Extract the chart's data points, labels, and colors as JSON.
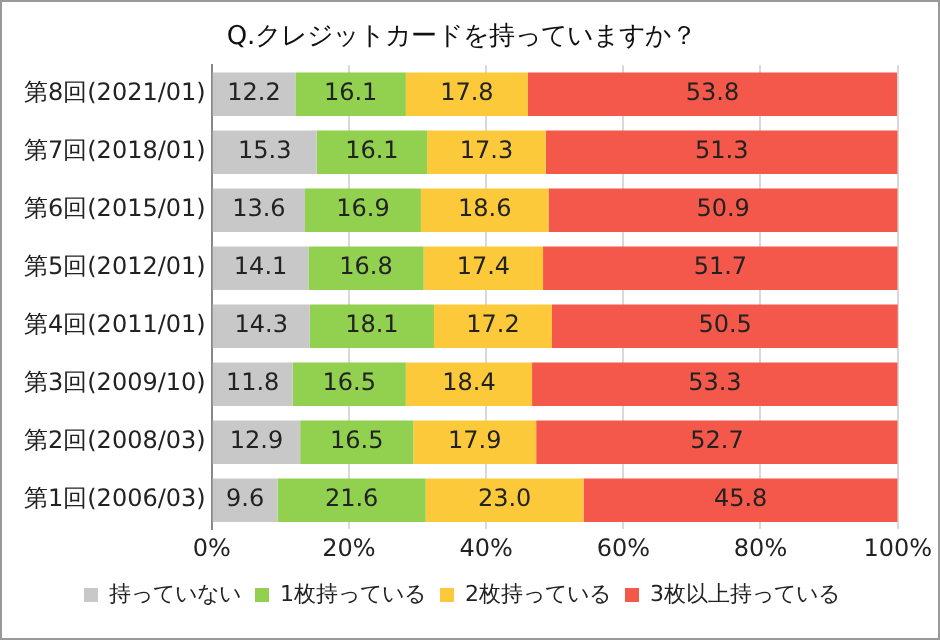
{
  "chart_data": {
    "type": "bar",
    "orientation": "horizontal",
    "stacked": true,
    "title": "Q.クレジットカードを持っていますか？",
    "categories": [
      "第8回(2021/01)",
      "第7回(2018/01)",
      "第6回(2015/01)",
      "第5回(2012/01)",
      "第4回(2011/01)",
      "第3回(2009/10)",
      "第2回(2008/03)",
      "第1回(2006/03)"
    ],
    "series": [
      {
        "name": "持っていない",
        "color": "#c8c8c8",
        "values": [
          12.2,
          15.3,
          13.6,
          14.1,
          14.3,
          11.8,
          12.9,
          9.6
        ],
        "value_labels": [
          "12.2",
          "15.3",
          "13.6",
          "14.1",
          "14.3",
          "11.8",
          "12.9",
          "9.6"
        ]
      },
      {
        "name": "1枚持っている",
        "color": "#92d050",
        "values": [
          16.1,
          16.1,
          16.9,
          16.8,
          18.1,
          16.5,
          16.5,
          21.6
        ],
        "value_labels": [
          "16.1",
          "16.1",
          "16.9",
          "16.8",
          "18.1",
          "16.5",
          "16.5",
          "21.6"
        ]
      },
      {
        "name": "2枚持っている",
        "color": "#fbc93a",
        "values": [
          17.8,
          17.3,
          18.6,
          17.4,
          17.2,
          18.4,
          17.9,
          23.0
        ],
        "value_labels": [
          "17.8",
          "17.3",
          "18.6",
          "17.4",
          "17.2",
          "18.4",
          "17.9",
          "23.0"
        ]
      },
      {
        "name": "3枚以上持っている",
        "color": "#f4584a",
        "values": [
          53.8,
          51.3,
          50.9,
          51.7,
          50.5,
          53.3,
          52.7,
          45.8
        ],
        "value_labels": [
          "53.8",
          "51.3",
          "50.9",
          "51.7",
          "50.5",
          "53.3",
          "52.7",
          "45.8"
        ]
      }
    ],
    "xlim": [
      0,
      100
    ],
    "xticks": [
      {
        "value": 0,
        "label": "0%"
      },
      {
        "value": 20,
        "label": "20%"
      },
      {
        "value": 40,
        "label": "40%"
      },
      {
        "value": 60,
        "label": "60%"
      },
      {
        "value": 80,
        "label": "80%"
      },
      {
        "value": 100,
        "label": "100%"
      }
    ],
    "grid": "x",
    "legend": "bottom"
  }
}
